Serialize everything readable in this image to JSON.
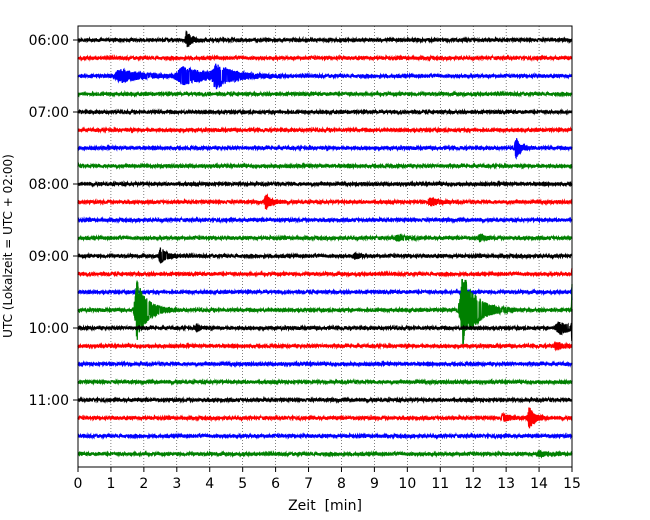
{
  "chart_data": {
    "type": "line",
    "chart_kind": "helicorder (seismogram drum plot)",
    "xlabel": "Zeit  [min]",
    "ylabel": "UTC (Lokalzeit = UTC + 02:00)",
    "xlim": [
      0,
      15
    ],
    "x_ticks": [
      "0",
      "1",
      "2",
      "3",
      "4",
      "5",
      "6",
      "7",
      "8",
      "9",
      "10",
      "11",
      "12",
      "13",
      "14",
      "15"
    ],
    "y_ticks": [
      {
        "label": "06:00",
        "trace": 0
      },
      {
        "label": "07:00",
        "trace": 4
      },
      {
        "label": "08:00",
        "trace": 8
      },
      {
        "label": "09:00",
        "trace": 12
      },
      {
        "label": "10:00",
        "trace": 16
      },
      {
        "label": "11:00",
        "trace": 20
      }
    ],
    "grid": {
      "vertical": "dotted, every minute",
      "horizontal": "none"
    },
    "color_cycle": [
      "#000000",
      "#ff0000",
      "#0000ff",
      "#008000"
    ],
    "trace_interval_minutes": 15,
    "traces": [
      {
        "index": 0,
        "start": "06:00",
        "events": [
          {
            "t": 3.3,
            "amp": 0.45,
            "dur": 0.3
          }
        ]
      },
      {
        "index": 1,
        "start": "06:15",
        "events": []
      },
      {
        "index": 2,
        "start": "06:30",
        "events": [
          {
            "t": 1.3,
            "amp": 0.35,
            "dur": 1.2
          },
          {
            "t": 3.2,
            "amp": 0.45,
            "dur": 1.6
          },
          {
            "t": 4.2,
            "amp": 0.55,
            "dur": 1.0
          }
        ]
      },
      {
        "index": 3,
        "start": "06:45",
        "events": []
      },
      {
        "index": 4,
        "start": "07:00",
        "events": []
      },
      {
        "index": 5,
        "start": "07:15",
        "events": []
      },
      {
        "index": 6,
        "start": "07:30",
        "events": [
          {
            "t": 13.3,
            "amp": 0.55,
            "dur": 0.3
          }
        ]
      },
      {
        "index": 7,
        "start": "07:45",
        "events": []
      },
      {
        "index": 8,
        "start": "08:00",
        "events": []
      },
      {
        "index": 9,
        "start": "08:15",
        "events": [
          {
            "t": 5.7,
            "amp": 0.4,
            "dur": 0.3
          },
          {
            "t": 10.7,
            "amp": 0.2,
            "dur": 0.5
          }
        ]
      },
      {
        "index": 10,
        "start": "08:30",
        "events": []
      },
      {
        "index": 11,
        "start": "08:45",
        "events": [
          {
            "t": 9.7,
            "amp": 0.15,
            "dur": 0.5
          },
          {
            "t": 12.2,
            "amp": 0.2,
            "dur": 0.3
          }
        ]
      },
      {
        "index": 12,
        "start": "09:00",
        "events": [
          {
            "t": 2.5,
            "amp": 0.45,
            "dur": 0.35
          },
          {
            "t": 8.4,
            "amp": 0.15,
            "dur": 0.3
          }
        ]
      },
      {
        "index": 13,
        "start": "09:15",
        "events": [
          {
            "t": 15.0,
            "amp": 0.3,
            "dur": 0.1
          }
        ]
      },
      {
        "index": 14,
        "start": "09:30",
        "events": [
          {
            "t": 15.0,
            "amp": 0.5,
            "dur": 0.1
          }
        ]
      },
      {
        "index": 15,
        "start": "09:45",
        "events": [
          {
            "t": 1.8,
            "amp": 1.6,
            "dur": 0.6
          },
          {
            "t": 11.7,
            "amp": 2.0,
            "dur": 0.8
          },
          {
            "t": 15.0,
            "amp": 1.8,
            "dur": 0.1
          }
        ]
      },
      {
        "index": 16,
        "start": "10:00",
        "events": [
          {
            "t": 3.6,
            "amp": 0.2,
            "dur": 0.2
          },
          {
            "t": 14.6,
            "amp": 0.35,
            "dur": 0.6
          },
          {
            "t": 15.0,
            "amp": 1.5,
            "dur": 0.1
          }
        ]
      },
      {
        "index": 17,
        "start": "10:15",
        "events": [
          {
            "t": 14.5,
            "amp": 0.2,
            "dur": 0.4
          }
        ]
      },
      {
        "index": 18,
        "start": "10:30",
        "events": []
      },
      {
        "index": 19,
        "start": "10:45",
        "events": []
      },
      {
        "index": 20,
        "start": "11:00",
        "events": []
      },
      {
        "index": 21,
        "start": "11:15",
        "events": [
          {
            "t": 12.9,
            "amp": 0.2,
            "dur": 0.4
          },
          {
            "t": 13.7,
            "amp": 0.6,
            "dur": 0.3
          }
        ]
      },
      {
        "index": 22,
        "start": "11:30",
        "events": []
      },
      {
        "index": 23,
        "start": "11:45",
        "events": [
          {
            "t": 14.0,
            "amp": 0.15,
            "dur": 0.4
          }
        ]
      }
    ]
  }
}
